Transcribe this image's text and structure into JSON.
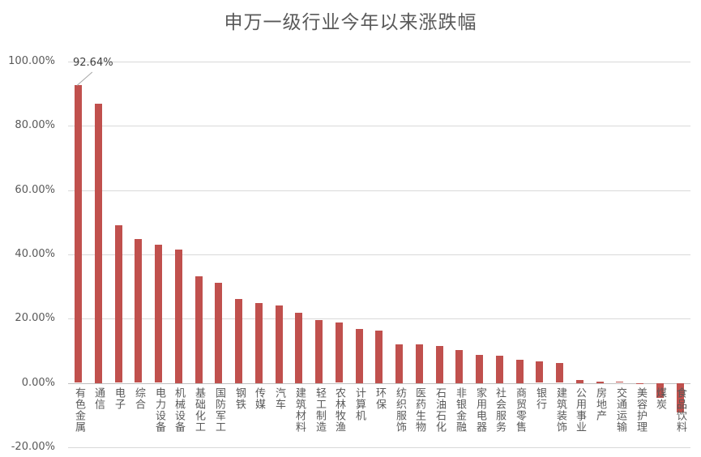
{
  "chart_data": {
    "type": "bar",
    "title": "申万一级行业今年以来涨跌幅",
    "xlabel": "",
    "ylabel": "",
    "ylim": [
      -0.2,
      1.0
    ],
    "yticks": [
      "100.00%",
      "80.00%",
      "60.00%",
      "40.00%",
      "20.00%",
      "0.00%",
      "-20.00%"
    ],
    "grid": true,
    "legend": "none",
    "bar_color": "#c0504d",
    "categories": [
      "有色金属",
      "通信",
      "电子",
      "综合",
      "电力设备",
      "机械设备",
      "基础化工",
      "国防军工",
      "钢铁",
      "传媒",
      "汽车",
      "建筑材料",
      "轻工制造",
      "农林牧渔",
      "计算机",
      "环保",
      "纺织服饰",
      "医药生物",
      "石油石化",
      "非银金融",
      "家用电器",
      "社会服务",
      "商贸零售",
      "银行",
      "建筑装饰",
      "公用事业",
      "房地产",
      "交通运输",
      "美容护理",
      "煤炭",
      "食品饮料"
    ],
    "values": [
      0.9264,
      0.869,
      0.49,
      0.447,
      0.429,
      0.416,
      0.333,
      0.313,
      0.262,
      0.25,
      0.242,
      0.219,
      0.197,
      0.187,
      0.169,
      0.164,
      0.121,
      0.121,
      0.116,
      0.103,
      0.088,
      0.086,
      0.073,
      0.066,
      0.061,
      0.01,
      0.005,
      0.003,
      -0.003,
      -0.045,
      -0.09
    ],
    "annotations": [
      {
        "category": "有色金属",
        "label": "92.64%"
      }
    ]
  }
}
